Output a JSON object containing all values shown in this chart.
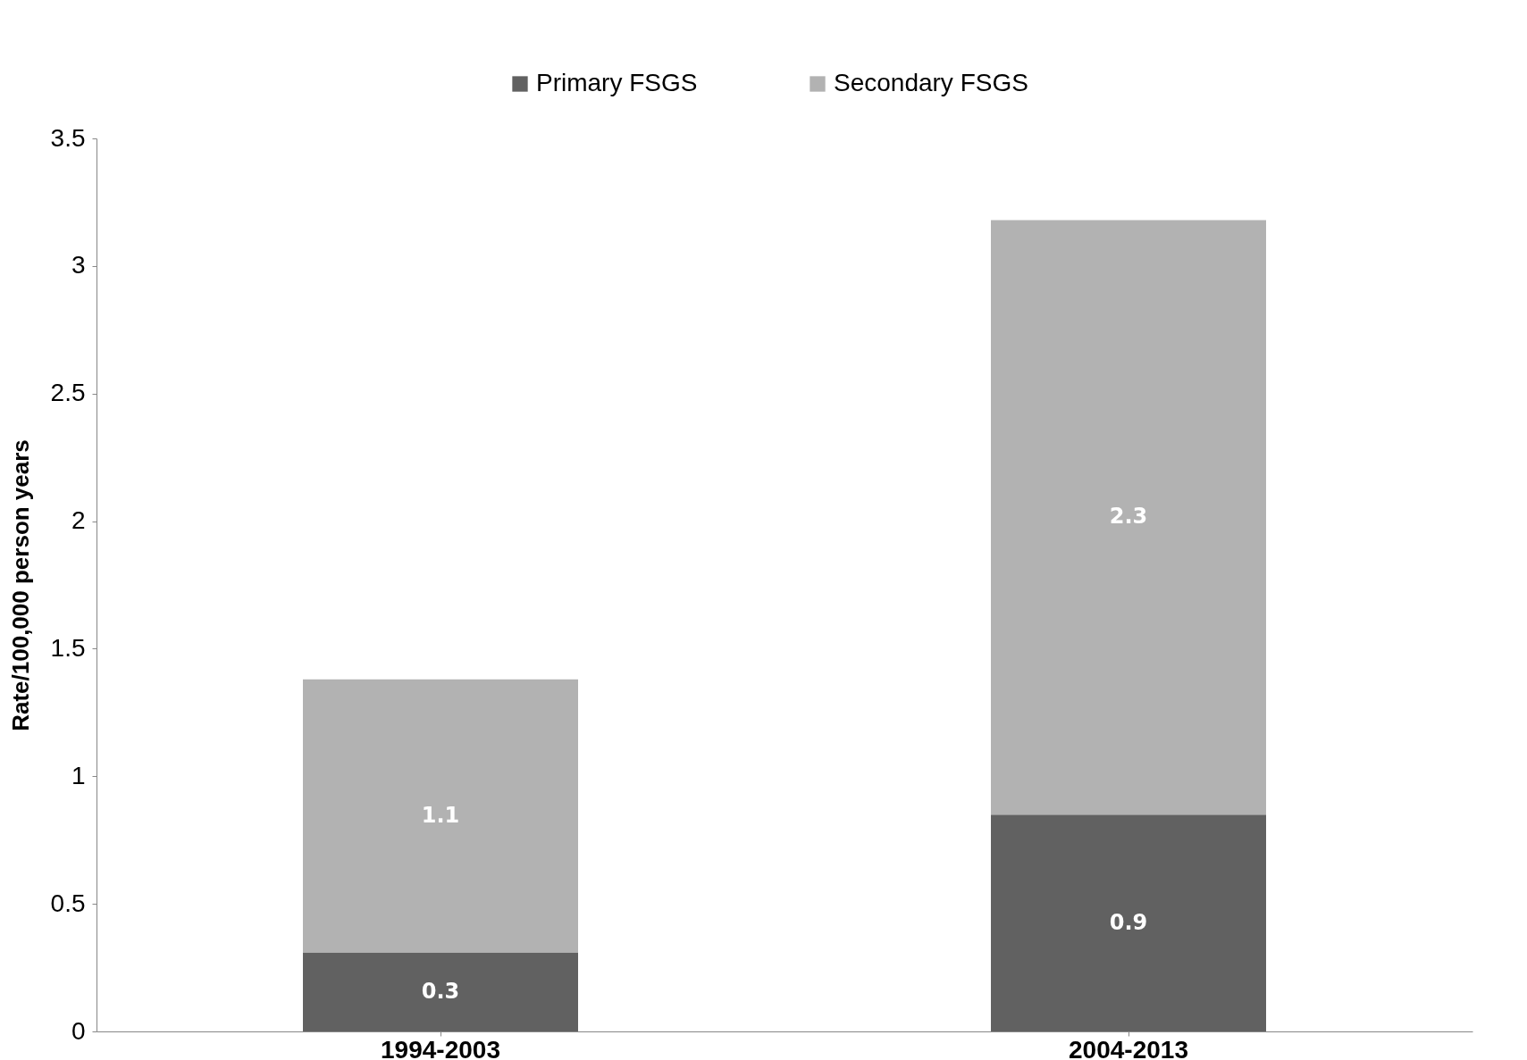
{
  "chart_data": {
    "type": "bar",
    "stacked": true,
    "ylabel": "Rate/100,000 person years",
    "categories": [
      "1994-2003",
      "2004-2013"
    ],
    "series": [
      {
        "name": "Primary FSGS",
        "color": "#616161",
        "values": [
          0.31,
          0.85
        ],
        "value_labels": [
          "0.3",
          "0.9"
        ]
      },
      {
        "name": "Secondary FSGS",
        "color": "#b2b2b2",
        "values": [
          1.07,
          2.33
        ],
        "value_labels": [
          "1.1",
          "2.3"
        ]
      }
    ],
    "ylim": [
      0,
      3.5
    ],
    "yticks": [
      0,
      0.5,
      1,
      1.5,
      2,
      2.5,
      3,
      3.5
    ],
    "grid": false,
    "legend": "top"
  }
}
